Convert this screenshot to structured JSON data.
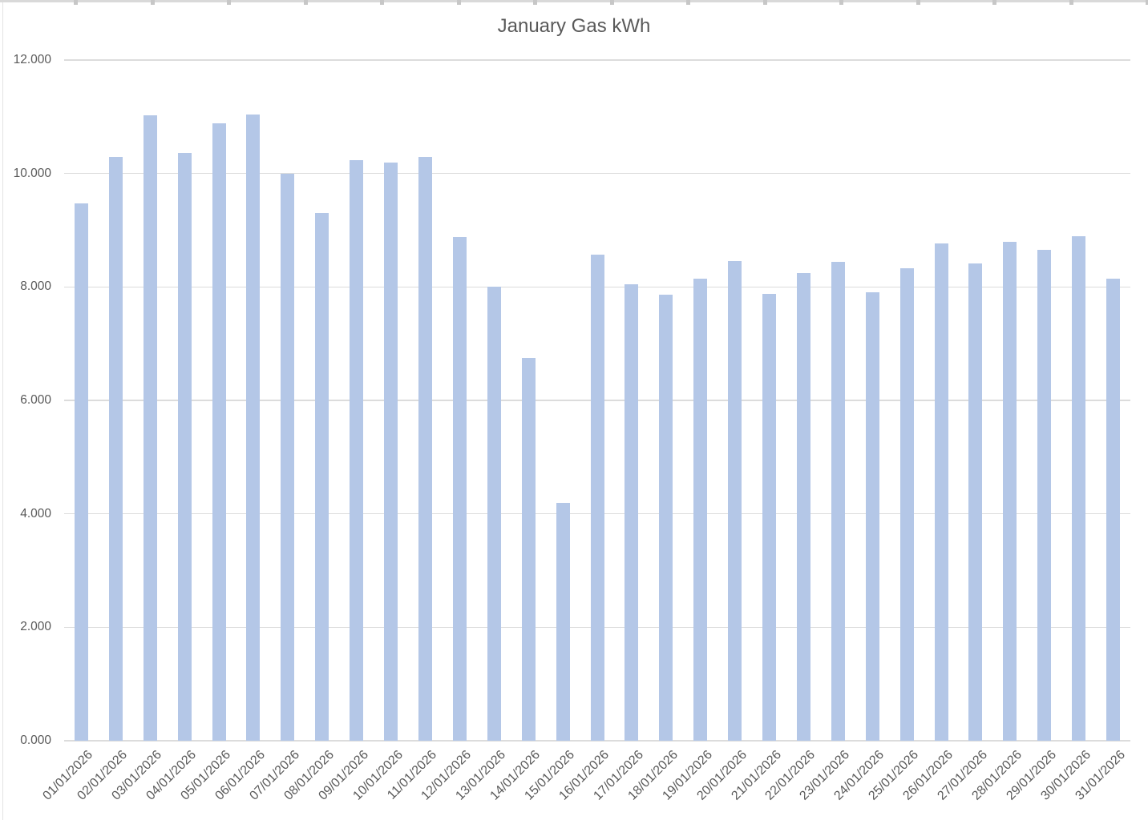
{
  "window": {
    "top_edge_tick_count": 15
  },
  "chart_data": {
    "type": "bar",
    "title": "January Gas kWh",
    "xlabel": "",
    "ylabel": "",
    "ylim": [
      0,
      12000
    ],
    "grid": true,
    "legend": false,
    "y_ticks": [
      {
        "value": 0,
        "label": "0.000"
      },
      {
        "value": 2000,
        "label": "2.000"
      },
      {
        "value": 4000,
        "label": "4.000"
      },
      {
        "value": 6000,
        "label": "6.000"
      },
      {
        "value": 8000,
        "label": "8.000"
      },
      {
        "value": 10000,
        "label": "10.000"
      },
      {
        "value": 12000,
        "label": "12.000"
      }
    ],
    "categories": [
      "01/01/2026",
      "02/01/2026",
      "03/01/2026",
      "04/01/2026",
      "05/01/2026",
      "06/01/2026",
      "07/01/2026",
      "08/01/2026",
      "09/01/2026",
      "10/01/2026",
      "11/01/2026",
      "12/01/2026",
      "13/01/2026",
      "14/01/2026",
      "15/01/2026",
      "16/01/2026",
      "17/01/2026",
      "18/01/2026",
      "19/01/2026",
      "20/01/2026",
      "21/01/2026",
      "22/01/2026",
      "23/01/2026",
      "24/01/2026",
      "25/01/2026",
      "26/01/2026",
      "27/01/2026",
      "28/01/2026",
      "29/01/2026",
      "30/01/2026",
      "31/01/2026"
    ],
    "values": [
      9480,
      10290,
      11030,
      10360,
      10880,
      11040,
      10000,
      9310,
      10230,
      10190,
      10290,
      8880,
      8000,
      6750,
      4200,
      8570,
      8050,
      7870,
      8150,
      8460,
      7880,
      8250,
      8440,
      7900,
      8330,
      8770,
      8420,
      8790,
      8650,
      8900,
      8150
    ],
    "colors": {
      "bar": "#b4c7e7",
      "gridline": "#dcdcdc",
      "text": "#595959"
    }
  }
}
